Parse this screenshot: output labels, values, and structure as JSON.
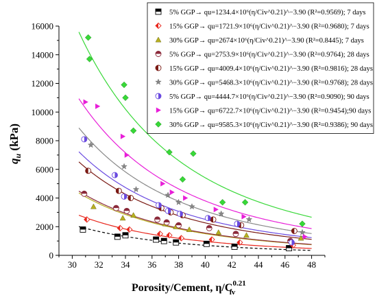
{
  "chart_data": {
    "type": "scatter",
    "ylabel_main": "q",
    "ylabel_sub": "u",
    "ylabel_unit": " (kPa)",
    "xlabel_main": "Porosity/Cement, η/C",
    "xlabel_sub": "iv",
    "xlabel_sup": "0.21",
    "xlim": [
      29,
      49
    ],
    "ylim": [
      0,
      16000
    ],
    "xticks": [
      30,
      32,
      34,
      36,
      38,
      40,
      42,
      44,
      46,
      48
    ],
    "yticks": [
      0,
      2000,
      4000,
      6000,
      8000,
      10000,
      12000,
      14000,
      16000
    ],
    "grid": false,
    "legend_position": "top-right",
    "series": [
      {
        "legend_label": "5% GGP→ qu=1234.4×10⁶(η/Civ^0.21)^−3.90 (R²=0.9569); 7 days",
        "coef": 1234.4,
        "exponent": -3.9,
        "color": "#000000",
        "marker": "square-half",
        "dash": true,
        "x": [
          30.8,
          33.4,
          34.0,
          36.3,
          36.9,
          37.8,
          40.1,
          42.2,
          46.3
        ],
        "y": [
          1800,
          1300,
          1400,
          1100,
          1000,
          900,
          800,
          600,
          500
        ]
      },
      {
        "legend_label": "15% GGP→ qu=1721.9×10⁶(η/Civ^0.21)^−3.90 (R²=0.9680); 7 days",
        "coef": 1721.9,
        "exponent": -3.9,
        "color": "#e8261c",
        "marker": "diamond-half",
        "dash": false,
        "x": [
          31.1,
          33.6,
          34.3,
          36.6,
          37.3,
          38.2,
          40.5,
          42.6,
          46.6
        ],
        "y": [
          2500,
          1900,
          1800,
          1500,
          1400,
          1200,
          1100,
          900,
          700
        ]
      },
      {
        "legend_label": "30% GGP→ qu=2674×10⁶(η/Civ^0.21)^−3.90 (R²=0.8445); 7 days",
        "coef": 2674,
        "exponent": -3.9,
        "color": "#b8b020",
        "marker": "triangle",
        "dash": false,
        "x": [
          31.6,
          33.8,
          34.6,
          37.0,
          37.8,
          38.8,
          41.0,
          43.1,
          47.2
        ],
        "y": [
          3400,
          2600,
          2800,
          2200,
          2000,
          1800,
          1600,
          1400,
          1200
        ]
      },
      {
        "legend_label": "5% GGP→ qu=2753.9×10⁶(η/Civ^0.21)^−3.90 (R²=0.9764); 28 days",
        "coef": 2753.9,
        "exponent": -3.9,
        "color": "#8b2a3a",
        "marker": "circle-half-top",
        "dash": false,
        "x": [
          30.9,
          33.3,
          34.1,
          36.4,
          37.1,
          38.0,
          40.3,
          42.3,
          46.4
        ],
        "y": [
          4300,
          3300,
          3100,
          2500,
          2300,
          2100,
          1900,
          1500,
          1000
        ]
      },
      {
        "legend_label": "15% GGP→ qu=4009.4×10⁶(η/Civ^0.21)^−3.90 (R²=0.9816); 28 days",
        "coef": 4009.4,
        "exponent": -3.9,
        "color": "#7a1a14",
        "marker": "circle-half-left",
        "dash": false,
        "x": [
          31.2,
          33.5,
          34.4,
          36.7,
          37.4,
          38.3,
          40.6,
          42.7,
          46.7
        ],
        "y": [
          5900,
          4500,
          4000,
          3300,
          3000,
          2800,
          2500,
          2100,
          1700
        ]
      },
      {
        "legend_label": "30% GGP→ qu=5468.3×10⁶(η/Civ^0.21)^−3.90 (R²=0.9768); 28 days",
        "coef": 5468.3,
        "exponent": -3.9,
        "color": "#888888",
        "marker": "star",
        "dash": false,
        "x": [
          31.4,
          33.9,
          34.8,
          37.2,
          38.0,
          39.0,
          41.2,
          43.3,
          47.3
        ],
        "y": [
          7700,
          6200,
          4600,
          4200,
          3700,
          3400,
          2900,
          2500,
          1600
        ]
      },
      {
        "legend_label": "5% GGP→ qu=4444.7×10⁶(η/Civ^0.21)^−3.90 (R²=0.9090); 90 days",
        "coef": 4444.7,
        "exponent": -3.9,
        "color": "#6a4ae0",
        "marker": "circle-half-right",
        "dash": false,
        "x": [
          30.9,
          33.2,
          33.9,
          36.5,
          37.2,
          38.1,
          40.2,
          42.4,
          46.5
        ],
        "y": [
          8100,
          5600,
          4100,
          3500,
          3100,
          2900,
          2600,
          2200,
          900
        ]
      },
      {
        "legend_label": "15% GGP→ qu=6722.7×10⁶(η/Civ^0.21)^−3.90 (R²=0.9454);90 days",
        "coef": 6722.7,
        "exponent": -3.9,
        "color": "#e81ed8",
        "marker": "triangle-right",
        "dash": false,
        "x": [
          31.0,
          31.9,
          33.8,
          34.1,
          36.8,
          37.5,
          38.5,
          40.8,
          42.9,
          47.5
        ],
        "y": [
          10700,
          10400,
          8300,
          7000,
          5000,
          4400,
          4000,
          3200,
          2700,
          1300
        ]
      },
      {
        "legend_label": "30% GGP→ qu=9585.3×10⁶(η/Civ^0.21)^−3.90 (R²=0.9386); 90 days",
        "coef": 9585.3,
        "exponent": -3.9,
        "color": "#38d838",
        "marker": "diamond",
        "dash": false,
        "x": [
          31.2,
          31.3,
          33.9,
          34.0,
          34.6,
          37.3,
          38.3,
          39.1,
          41.3,
          43.0,
          47.3
        ],
        "y": [
          15200,
          13700,
          11900,
          11000,
          8700,
          7200,
          5300,
          7100,
          3700,
          3700,
          2200
        ]
      }
    ]
  }
}
